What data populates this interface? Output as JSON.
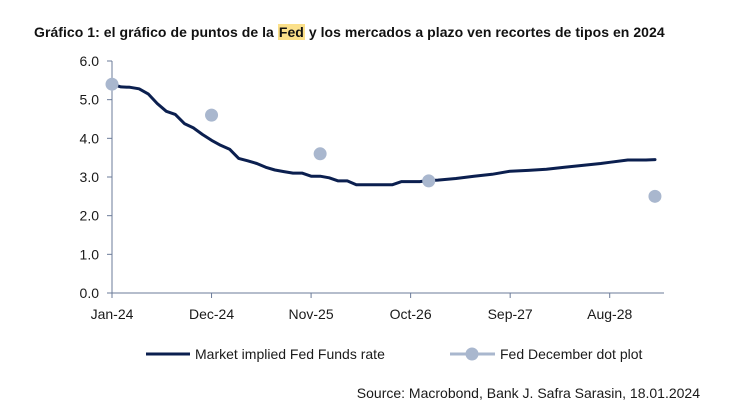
{
  "title": {
    "prefix": "Gráfico 1: el gráfico de puntos de la ",
    "highlight": "Fed",
    "suffix": " y los mercados a plazo ven recortes de tipos en 2024"
  },
  "source": "Source: Macrobond, Bank J. Safra Sarasin, 18.01.2024",
  "colors": {
    "line": "#0b1f4f",
    "dots": "#a9b7ce",
    "axis": "#6b7b99",
    "title_highlight": "#fbe08a"
  },
  "chart_data": {
    "type": "line",
    "title": "Gráfico 1: el gráfico de puntos de la Fed y los mercados a plazo ven recortes de tipos en 2024",
    "xlabel": "",
    "ylabel": "",
    "ylim": [
      0,
      6
    ],
    "yticks": [
      "0.0",
      "1.0",
      "2.0",
      "3.0",
      "4.0",
      "5.0",
      "6.0"
    ],
    "xlim": [
      "2024-01",
      "2029-02"
    ],
    "xticks": [
      "Jan-24",
      "Dec-24",
      "Nov-25",
      "Oct-26",
      "Sep-27",
      "Aug-28"
    ],
    "grid": false,
    "legend": "bottom",
    "series": [
      {
        "name": "Market implied Fed Funds rate",
        "style": "line",
        "x": [
          "2024-01",
          "2024-02",
          "2024-03",
          "2024-04",
          "2024-05",
          "2024-06",
          "2024-07",
          "2024-08",
          "2024-09",
          "2024-10",
          "2024-11",
          "2024-12",
          "2025-01",
          "2025-02",
          "2025-03",
          "2025-04",
          "2025-05",
          "2025-06",
          "2025-07",
          "2025-08",
          "2025-09",
          "2025-10",
          "2025-11",
          "2025-12",
          "2026-01",
          "2026-02",
          "2026-03",
          "2026-04",
          "2026-05",
          "2026-06",
          "2026-07",
          "2026-08",
          "2026-09",
          "2026-10",
          "2026-11",
          "2026-12",
          "2027-01",
          "2027-03",
          "2027-05",
          "2027-07",
          "2027-09",
          "2027-11",
          "2028-01",
          "2028-03",
          "2028-05",
          "2028-07",
          "2028-08",
          "2028-10",
          "2028-12",
          "2029-01"
        ],
        "values": [
          5.4,
          5.33,
          5.32,
          5.28,
          5.15,
          4.9,
          4.7,
          4.62,
          4.38,
          4.27,
          4.1,
          3.95,
          3.82,
          3.72,
          3.48,
          3.42,
          3.35,
          3.25,
          3.18,
          3.14,
          3.1,
          3.1,
          3.02,
          3.02,
          2.98,
          2.9,
          2.9,
          2.8,
          2.8,
          2.8,
          2.8,
          2.8,
          2.88,
          2.88,
          2.88,
          2.91,
          2.92,
          2.96,
          3.02,
          3.07,
          3.15,
          3.17,
          3.2,
          3.25,
          3.3,
          3.35,
          3.38,
          3.44,
          3.44,
          3.45
        ]
      },
      {
        "name": "Fed December dot plot",
        "style": "scatter",
        "x": [
          "2024-01",
          "2024-12",
          "2025-12",
          "2026-12",
          "2029-01"
        ],
        "values": [
          5.4,
          4.6,
          3.6,
          2.9,
          2.5
        ]
      }
    ]
  }
}
